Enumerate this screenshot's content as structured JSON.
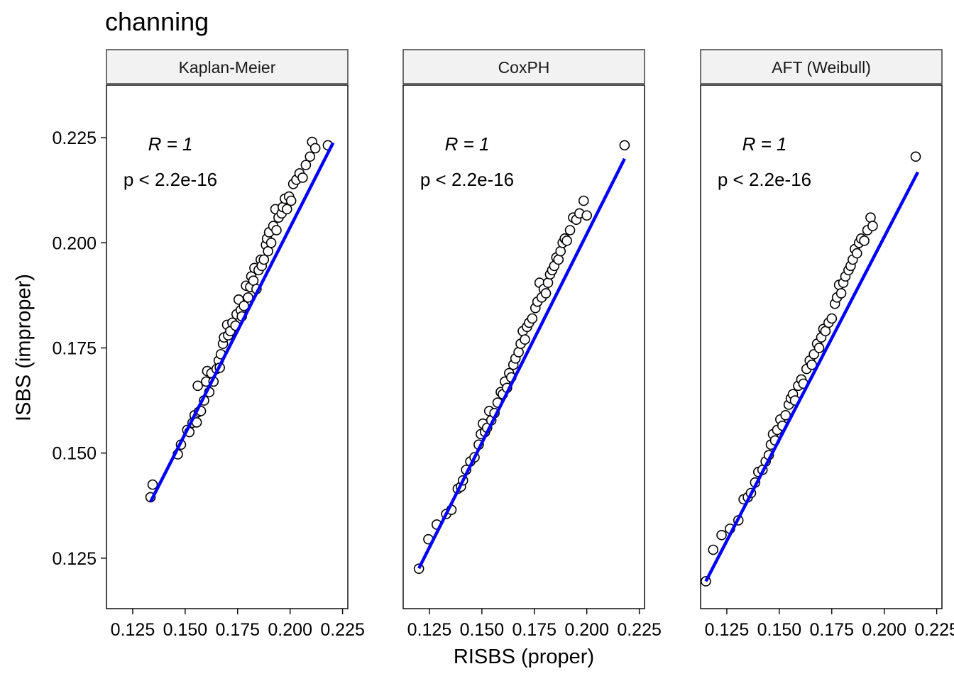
{
  "title": "channing",
  "chart_data": {
    "type": "scatter",
    "title": "channing",
    "xlabel": "RISBS (proper)",
    "ylabel": "ISBS (improper)",
    "ylim": [
      0.113,
      0.2375
    ],
    "y_ticks": [
      "0.125",
      "0.150",
      "0.175",
      "0.200",
      "0.225"
    ],
    "x_ticks": [
      "0.125",
      "0.150",
      "0.175",
      "0.200",
      "0.225"
    ],
    "grid": false,
    "legend": "none",
    "point_color": "#000000",
    "point_fill": "#ffffff",
    "line_color": "#0000ff",
    "panels": [
      {
        "name": "Kaplan-Meier",
        "xlim": [
          0.1125,
          0.2275
        ],
        "annotation_r": "R = 1",
        "annotation_p": "p < 2.2e-16",
        "fit_line": {
          "x": [
            0.1335,
            0.2205
          ],
          "y": [
            0.1384,
            0.2238
          ]
        },
        "points": [
          [
            0.1335,
            0.1395
          ],
          [
            0.1345,
            0.1425
          ],
          [
            0.1465,
            0.1497
          ],
          [
            0.148,
            0.152
          ],
          [
            0.151,
            0.1555
          ],
          [
            0.152,
            0.155
          ],
          [
            0.1535,
            0.1572
          ],
          [
            0.1545,
            0.159
          ],
          [
            0.1555,
            0.1573
          ],
          [
            0.1565,
            0.1598
          ],
          [
            0.156,
            0.166
          ],
          [
            0.1575,
            0.16
          ],
          [
            0.159,
            0.1625
          ],
          [
            0.16,
            0.167
          ],
          [
            0.1605,
            0.1695
          ],
          [
            0.1615,
            0.1645
          ],
          [
            0.1625,
            0.169
          ],
          [
            0.1635,
            0.167
          ],
          [
            0.165,
            0.17
          ],
          [
            0.166,
            0.172
          ],
          [
            0.1665,
            0.1703
          ],
          [
            0.167,
            0.1735
          ],
          [
            0.168,
            0.176
          ],
          [
            0.1685,
            0.1775
          ],
          [
            0.17,
            0.1805
          ],
          [
            0.1705,
            0.178
          ],
          [
            0.1715,
            0.179
          ],
          [
            0.1725,
            0.181
          ],
          [
            0.174,
            0.1803
          ],
          [
            0.1745,
            0.183
          ],
          [
            0.1755,
            0.1865
          ],
          [
            0.1765,
            0.184
          ],
          [
            0.177,
            0.1825
          ],
          [
            0.178,
            0.185
          ],
          [
            0.179,
            0.1898
          ],
          [
            0.18,
            0.187
          ],
          [
            0.181,
            0.1895
          ],
          [
            0.1815,
            0.192
          ],
          [
            0.1825,
            0.191
          ],
          [
            0.183,
            0.194
          ],
          [
            0.184,
            0.189
          ],
          [
            0.185,
            0.1935
          ],
          [
            0.186,
            0.196
          ],
          [
            0.1865,
            0.1945
          ],
          [
            0.1875,
            0.196
          ],
          [
            0.1885,
            0.1995
          ],
          [
            0.189,
            0.201
          ],
          [
            0.1895,
            0.198
          ],
          [
            0.19,
            0.2025
          ],
          [
            0.191,
            0.2
          ],
          [
            0.192,
            0.204
          ],
          [
            0.193,
            0.208
          ],
          [
            0.1935,
            0.203
          ],
          [
            0.1945,
            0.206
          ],
          [
            0.196,
            0.207
          ],
          [
            0.1965,
            0.2085
          ],
          [
            0.1975,
            0.2105
          ],
          [
            0.1985,
            0.208
          ],
          [
            0.1995,
            0.211
          ],
          [
            0.2005,
            0.21
          ],
          [
            0.2015,
            0.214
          ],
          [
            0.203,
            0.215
          ],
          [
            0.2045,
            0.2165
          ],
          [
            0.206,
            0.2155
          ],
          [
            0.2075,
            0.2185
          ],
          [
            0.2095,
            0.2205
          ],
          [
            0.2105,
            0.224
          ],
          [
            0.212,
            0.2225
          ],
          [
            0.218,
            0.2232
          ]
        ]
      },
      {
        "name": "CoxPH",
        "xlim": [
          0.1125,
          0.2275
        ],
        "annotation_r": "R = 1",
        "annotation_p": "p < 2.2e-16",
        "fit_line": {
          "x": [
            0.12,
            0.218
          ],
          "y": [
            0.1226,
            0.22
          ]
        },
        "points": [
          [
            0.12,
            0.1225
          ],
          [
            0.1245,
            0.1295
          ],
          [
            0.1285,
            0.133
          ],
          [
            0.133,
            0.1355
          ],
          [
            0.1355,
            0.1365
          ],
          [
            0.1385,
            0.1415
          ],
          [
            0.14,
            0.142
          ],
          [
            0.141,
            0.1435
          ],
          [
            0.1425,
            0.146
          ],
          [
            0.1445,
            0.148
          ],
          [
            0.1465,
            0.149
          ],
          [
            0.1485,
            0.152
          ],
          [
            0.1495,
            0.1545
          ],
          [
            0.1505,
            0.157
          ],
          [
            0.1515,
            0.155
          ],
          [
            0.1525,
            0.156
          ],
          [
            0.1535,
            0.16
          ],
          [
            0.1545,
            0.1578
          ],
          [
            0.156,
            0.1595
          ],
          [
            0.1575,
            0.162
          ],
          [
            0.159,
            0.1645
          ],
          [
            0.16,
            0.164
          ],
          [
            0.161,
            0.167
          ],
          [
            0.162,
            0.1655
          ],
          [
            0.163,
            0.169
          ],
          [
            0.164,
            0.168
          ],
          [
            0.165,
            0.171
          ],
          [
            0.166,
            0.1725
          ],
          [
            0.1675,
            0.174
          ],
          [
            0.1685,
            0.176
          ],
          [
            0.1695,
            0.179
          ],
          [
            0.1705,
            0.177
          ],
          [
            0.1715,
            0.18
          ],
          [
            0.1725,
            0.181
          ],
          [
            0.174,
            0.182
          ],
          [
            0.1755,
            0.1845
          ],
          [
            0.1765,
            0.186
          ],
          [
            0.1775,
            0.1905
          ],
          [
            0.1785,
            0.187
          ],
          [
            0.1795,
            0.189
          ],
          [
            0.1805,
            0.188
          ],
          [
            0.1815,
            0.1905
          ],
          [
            0.1825,
            0.1925
          ],
          [
            0.1835,
            0.1935
          ],
          [
            0.1845,
            0.1945
          ],
          [
            0.1855,
            0.1965
          ],
          [
            0.1865,
            0.196
          ],
          [
            0.1875,
            0.198
          ],
          [
            0.1885,
            0.2
          ],
          [
            0.1895,
            0.201
          ],
          [
            0.1905,
            0.2005
          ],
          [
            0.192,
            0.203
          ],
          [
            0.1935,
            0.206
          ],
          [
            0.195,
            0.2055
          ],
          [
            0.1965,
            0.207
          ],
          [
            0.1985,
            0.21
          ],
          [
            0.2,
            0.2065
          ],
          [
            0.218,
            0.2232
          ]
        ]
      },
      {
        "name": "AFT (Weibull)",
        "xlim": [
          0.1125,
          0.2275
        ],
        "annotation_r": "R = 1",
        "annotation_p": "p < 2.2e-16",
        "fit_line": {
          "x": [
            0.115,
            0.216
          ],
          "y": [
            0.1195,
            0.2168
          ]
        },
        "points": [
          [
            0.115,
            0.1195
          ],
          [
            0.1185,
            0.127
          ],
          [
            0.1225,
            0.1305
          ],
          [
            0.1265,
            0.132
          ],
          [
            0.1305,
            0.134
          ],
          [
            0.133,
            0.139
          ],
          [
            0.135,
            0.1395
          ],
          [
            0.1365,
            0.1405
          ],
          [
            0.1385,
            0.143
          ],
          [
            0.14,
            0.1455
          ],
          [
            0.142,
            0.146
          ],
          [
            0.1435,
            0.148
          ],
          [
            0.145,
            0.1495
          ],
          [
            0.146,
            0.152
          ],
          [
            0.147,
            0.1545
          ],
          [
            0.148,
            0.153
          ],
          [
            0.149,
            0.1555
          ],
          [
            0.1505,
            0.158
          ],
          [
            0.1515,
            0.1565
          ],
          [
            0.153,
            0.159
          ],
          [
            0.1545,
            0.1615
          ],
          [
            0.1555,
            0.163
          ],
          [
            0.1565,
            0.164
          ],
          [
            0.1575,
            0.1625
          ],
          [
            0.159,
            0.166
          ],
          [
            0.1605,
            0.1675
          ],
          [
            0.1615,
            0.1665
          ],
          [
            0.163,
            0.17
          ],
          [
            0.1645,
            0.172
          ],
          [
            0.1655,
            0.171
          ],
          [
            0.1665,
            0.1735
          ],
          [
            0.168,
            0.176
          ],
          [
            0.169,
            0.175
          ],
          [
            0.17,
            0.1775
          ],
          [
            0.171,
            0.1795
          ],
          [
            0.172,
            0.179
          ],
          [
            0.1735,
            0.181
          ],
          [
            0.175,
            0.182
          ],
          [
            0.1765,
            0.1855
          ],
          [
            0.1775,
            0.187
          ],
          [
            0.1785,
            0.19
          ],
          [
            0.1795,
            0.188
          ],
          [
            0.1805,
            0.1905
          ],
          [
            0.1815,
            0.192
          ],
          [
            0.183,
            0.1935
          ],
          [
            0.184,
            0.1945
          ],
          [
            0.185,
            0.196
          ],
          [
            0.186,
            0.1985
          ],
          [
            0.187,
            0.1975
          ],
          [
            0.188,
            0.2
          ],
          [
            0.189,
            0.201
          ],
          [
            0.1905,
            0.2005
          ],
          [
            0.192,
            0.203
          ],
          [
            0.1935,
            0.206
          ],
          [
            0.1945,
            0.204
          ],
          [
            0.215,
            0.2205
          ]
        ]
      }
    ]
  }
}
